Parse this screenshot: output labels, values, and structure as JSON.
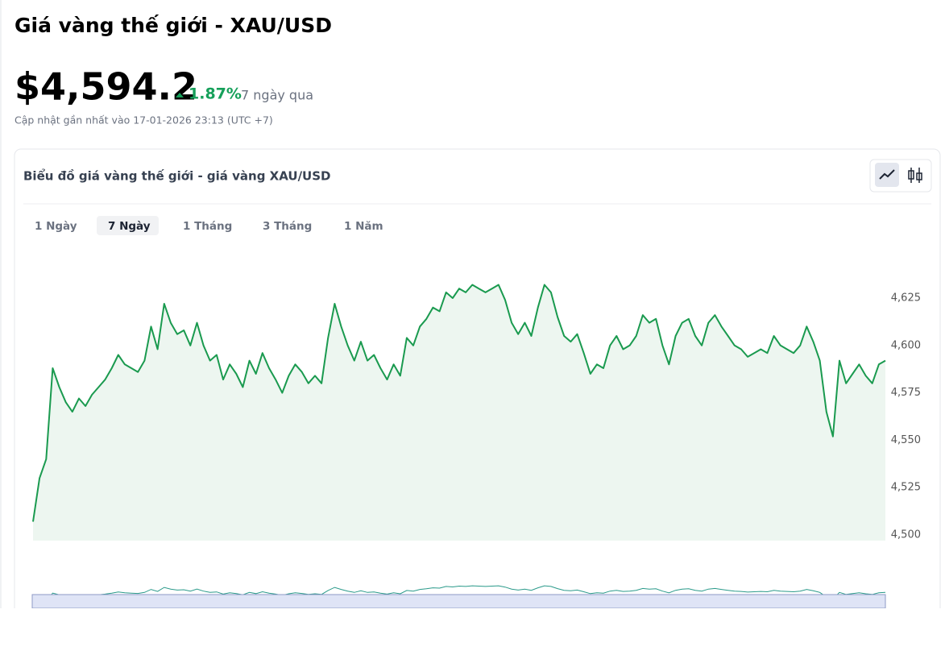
{
  "header": {
    "title": "Giá vàng thế giới - XAU/USD",
    "price": "$4,594.2",
    "change": "1.87%",
    "period": "7 ngày qua",
    "updated": "Cập nhật gần nhất vào 17-01-2026 23:13 (UTC +7)"
  },
  "card": {
    "title": "Biểu đồ giá vàng thế giới - giá vàng XAU/USD",
    "tabs": [
      "1 Ngày",
      "7 Ngày",
      "1 Tháng",
      "3 Tháng",
      "1 Năm"
    ],
    "active_tab": 1
  },
  "chart_data": {
    "type": "line",
    "color": "#1a9a4f",
    "fill": "#edf6f0",
    "values": [
      4507,
      4530,
      4540,
      4588,
      4578,
      4570,
      4565,
      4572,
      4568,
      4574,
      4578,
      4582,
      4588,
      4595,
      4590,
      4588,
      4586,
      4592,
      4610,
      4598,
      4622,
      4612,
      4606,
      4608,
      4600,
      4612,
      4600,
      4592,
      4595,
      4582,
      4590,
      4585,
      4578,
      4592,
      4585,
      4596,
      4588,
      4582,
      4575,
      4584,
      4590,
      4586,
      4580,
      4584,
      4580,
      4604,
      4622,
      4610,
      4600,
      4592,
      4602,
      4592,
      4595,
      4588,
      4582,
      4590,
      4584,
      4604,
      4600,
      4610,
      4614,
      4620,
      4618,
      4628,
      4625,
      4630,
      4628,
      4632,
      4630,
      4628,
      4630,
      4632,
      4624,
      4612,
      4606,
      4612,
      4605,
      4620,
      4632,
      4628,
      4615,
      4605,
      4602,
      4606,
      4596,
      4585,
      4590,
      4588,
      4600,
      4605,
      4598,
      4600,
      4605,
      4616,
      4612,
      4614,
      4600,
      4590,
      4605,
      4612,
      4614,
      4605,
      4600,
      4612,
      4616,
      4610,
      4605,
      4600,
      4598,
      4594,
      4596,
      4598,
      4596,
      4605,
      4600,
      4598,
      4596,
      4600,
      4610,
      4602,
      4592,
      4565,
      4552,
      4592,
      4580,
      4585,
      4590,
      4584,
      4580,
      4590,
      4592
    ],
    "ylim": [
      4497,
      4642
    ],
    "yticks": [
      {
        "value": 4500,
        "label": "4,500"
      },
      {
        "value": 4525,
        "label": "4,525"
      },
      {
        "value": 4550,
        "label": "4,550"
      },
      {
        "value": 4575,
        "label": "4,575"
      },
      {
        "value": 4600,
        "label": "4,600"
      },
      {
        "value": 4625,
        "label": "4,625"
      }
    ]
  }
}
